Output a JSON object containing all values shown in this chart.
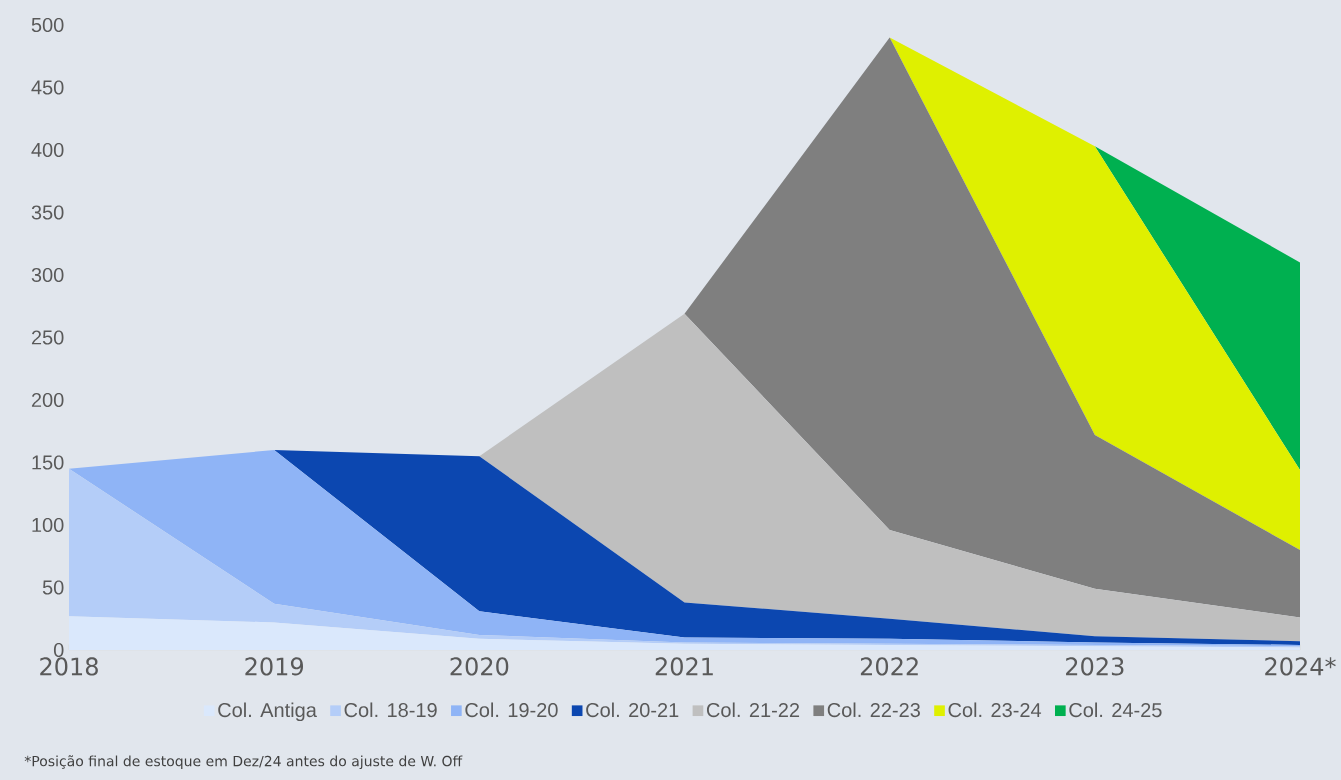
{
  "chart_data": {
    "type": "area",
    "stacked": true,
    "categories": [
      "2018",
      "2019",
      "2020",
      "2021",
      "2022",
      "2023",
      "2024*"
    ],
    "series": [
      {
        "name": "Col. Antiga",
        "color": "#dae8fc",
        "values": [
          27,
          22,
          9,
          5,
          4,
          3,
          2
        ]
      },
      {
        "name": "Col. 18-19",
        "color": "#b4cdf8",
        "values": [
          118,
          15,
          3,
          1,
          1,
          1,
          1
        ]
      },
      {
        "name": "Col. 19-20",
        "color": "#8fb4f6",
        "values": [
          0,
          123,
          19,
          4,
          4,
          2,
          1
        ]
      },
      {
        "name": "Col. 20-21",
        "color": "#0c47b0",
        "values": [
          0,
          0,
          124,
          28,
          16,
          5,
          3
        ]
      },
      {
        "name": "Col. 21-22",
        "color": "#bfbfbf",
        "values": [
          0,
          0,
          0,
          231,
          71,
          38,
          19
        ]
      },
      {
        "name": "Col. 22-23",
        "color": "#7f7f7f",
        "values": [
          0,
          0,
          0,
          0,
          394,
          123,
          54
        ]
      },
      {
        "name": "Col. 23-24",
        "color": "#dff000",
        "values": [
          0,
          0,
          0,
          0,
          0,
          231,
          64
        ]
      },
      {
        "name": "Col. 24-25",
        "color": "#00b050",
        "values": [
          0,
          0,
          0,
          0,
          0,
          0,
          166
        ]
      }
    ],
    "ylim": [
      0,
      500
    ],
    "yticks": [
      0,
      50,
      100,
      150,
      200,
      250,
      300,
      350,
      400,
      450,
      500
    ],
    "legend": "bottom",
    "annotations": [
      "*Posição final de estoque em Dez/24 antes do ajuste de W. Off"
    ]
  }
}
